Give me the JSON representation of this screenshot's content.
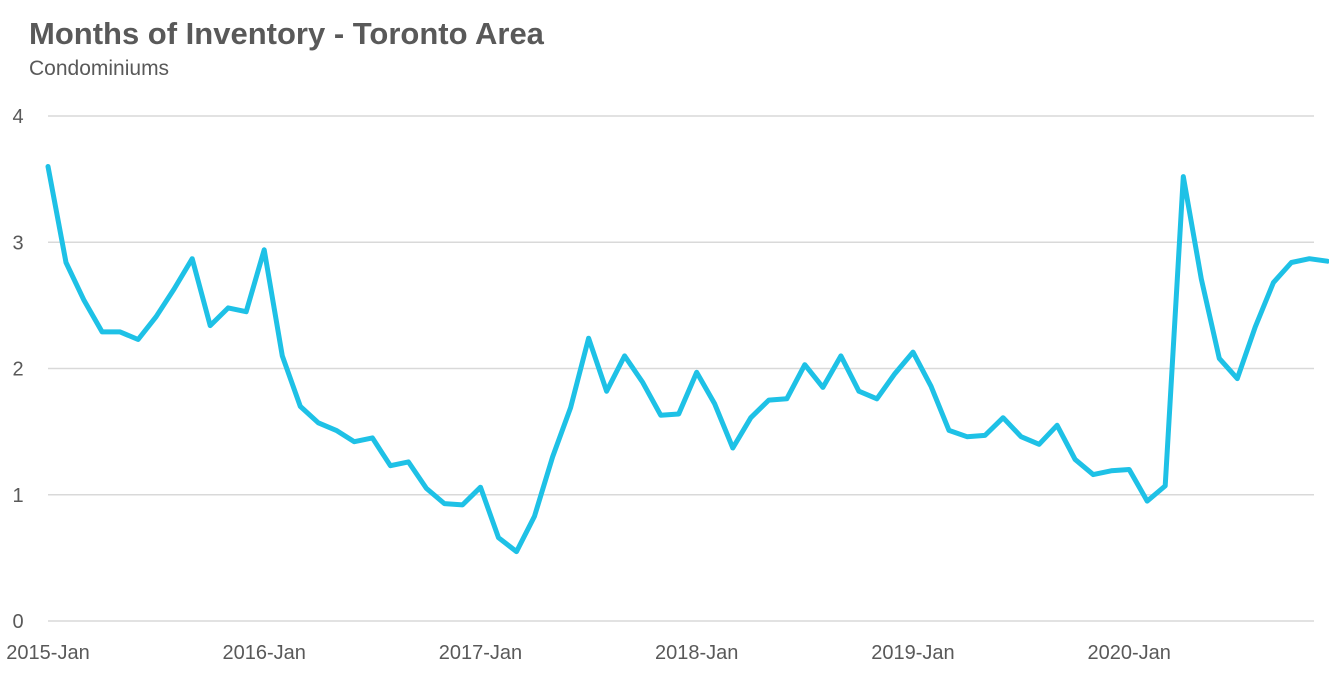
{
  "title": "Months of Inventory - Toronto Area",
  "subtitle": "Condominiums",
  "colors": {
    "line": "#1ec1e6",
    "grid": "#d9d9d9",
    "text": "#595959"
  },
  "chart_data": {
    "type": "line",
    "title": "Months of Inventory - Toronto Area",
    "subtitle": "Condominiums",
    "xlabel": "",
    "ylabel": "",
    "ylim": [
      0,
      4
    ],
    "yticks": [
      0,
      1,
      2,
      3,
      4
    ],
    "grid": true,
    "legend": "none",
    "xtick_labels": [
      "2015-Jan",
      "2016-Jan",
      "2017-Jan",
      "2018-Jan",
      "2019-Jan",
      "2020-Jan"
    ],
    "x": [
      "2015-01",
      "2015-02",
      "2015-03",
      "2015-04",
      "2015-05",
      "2015-06",
      "2015-07",
      "2015-08",
      "2015-09",
      "2015-10",
      "2015-11",
      "2015-12",
      "2016-01",
      "2016-02",
      "2016-03",
      "2016-04",
      "2016-05",
      "2016-06",
      "2016-07",
      "2016-08",
      "2016-09",
      "2016-10",
      "2016-11",
      "2016-12",
      "2017-01",
      "2017-02",
      "2017-03",
      "2017-04",
      "2017-05",
      "2017-06",
      "2017-07",
      "2017-08",
      "2017-09",
      "2017-10",
      "2017-11",
      "2017-12",
      "2018-01",
      "2018-02",
      "2018-03",
      "2018-04",
      "2018-05",
      "2018-06",
      "2018-07",
      "2018-08",
      "2018-09",
      "2018-10",
      "2018-11",
      "2018-12",
      "2019-01",
      "2019-02",
      "2019-03",
      "2019-04",
      "2019-05",
      "2019-06",
      "2019-07",
      "2019-08",
      "2019-09",
      "2019-10",
      "2019-11",
      "2019-12",
      "2020-01",
      "2020-02",
      "2020-03",
      "2020-04",
      "2020-05",
      "2020-06",
      "2020-07",
      "2020-08",
      "2020-09",
      "2020-10",
      "2020-11",
      "2020-12"
    ],
    "values": [
      3.6,
      2.84,
      2.54,
      2.29,
      2.29,
      2.23,
      2.41,
      2.63,
      2.87,
      2.34,
      2.48,
      2.45,
      2.94,
      2.1,
      1.7,
      1.57,
      1.51,
      1.42,
      1.45,
      1.23,
      1.26,
      1.05,
      0.93,
      0.92,
      1.06,
      0.66,
      0.55,
      0.83,
      1.3,
      1.69,
      2.24,
      1.82,
      2.1,
      1.89,
      1.63,
      1.64,
      1.97,
      1.72,
      1.37,
      1.61,
      1.75,
      1.76,
      2.03,
      1.85,
      2.1,
      1.82,
      1.76,
      1.96,
      2.13,
      1.86,
      1.51,
      1.46,
      1.47,
      1.61,
      1.46,
      1.4,
      1.55,
      1.28,
      1.16,
      1.19,
      1.2,
      0.95,
      1.07,
      3.52,
      2.71,
      2.08,
      1.92,
      2.33,
      2.68,
      2.84,
      2.87,
      2.85
    ],
    "series": [
      {
        "name": "",
        "color": "#1ec1e6"
      }
    ]
  }
}
